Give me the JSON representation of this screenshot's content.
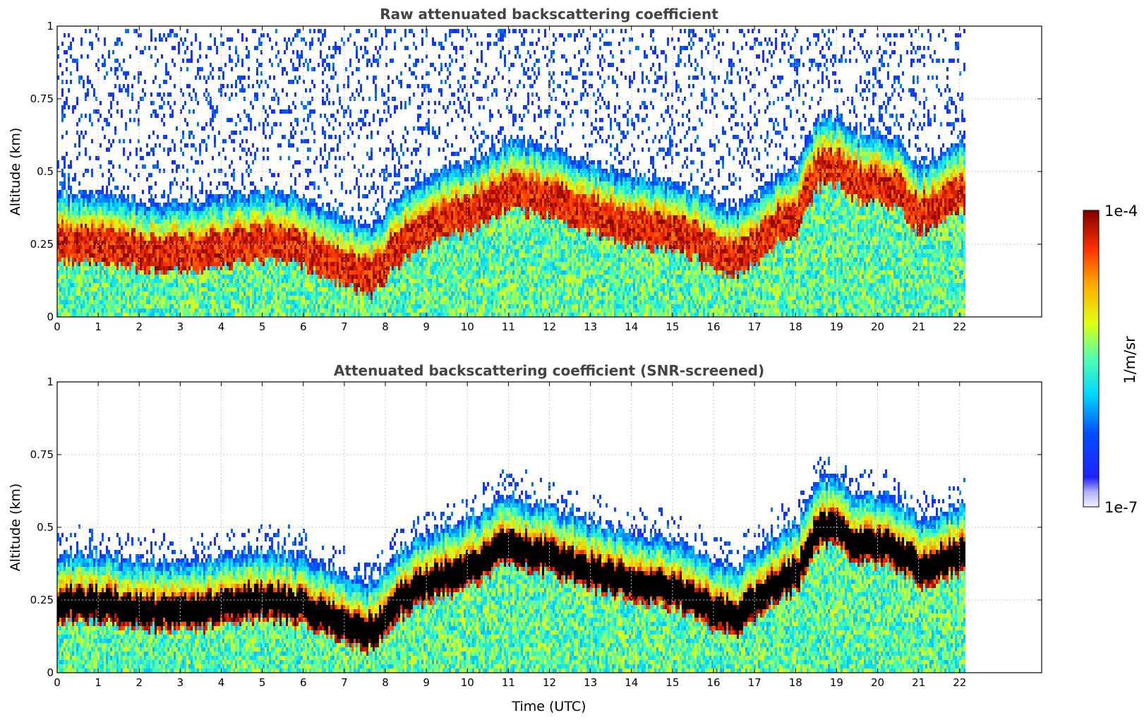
{
  "chart_data": [
    {
      "type": "heatmap",
      "title": "Raw attenuated backscattering coefficient",
      "xlabel": "",
      "ylabel": "Altitude (km)",
      "xlim": [
        0,
        24
      ],
      "ylim": [
        0,
        1
      ],
      "xticks": [
        "0",
        "1",
        "2",
        "3",
        "4",
        "5",
        "6",
        "7",
        "8",
        "9",
        "10",
        "11",
        "12",
        "13",
        "14",
        "15",
        "16",
        "17",
        "18",
        "19",
        "20",
        "21",
        "22"
      ],
      "yticks": [
        "0",
        "0.25",
        "0.5",
        "0.75",
        "1"
      ],
      "grid": true,
      "screened": false,
      "data_end_hour": 22.1,
      "boundary_layer_top_km": [
        [
          0,
          0.32
        ],
        [
          1,
          0.31
        ],
        [
          2,
          0.29
        ],
        [
          3,
          0.28
        ],
        [
          4,
          0.3
        ],
        [
          5,
          0.32
        ],
        [
          6,
          0.3
        ],
        [
          7,
          0.23
        ],
        [
          7.7,
          0.2
        ],
        [
          8.2,
          0.3
        ],
        [
          9,
          0.38
        ],
        [
          10,
          0.42
        ],
        [
          11,
          0.5
        ],
        [
          12,
          0.47
        ],
        [
          13,
          0.42
        ],
        [
          14,
          0.38
        ],
        [
          15,
          0.36
        ],
        [
          15.6,
          0.32
        ],
        [
          16,
          0.29
        ],
        [
          16.5,
          0.26
        ],
        [
          17,
          0.3
        ],
        [
          17.5,
          0.38
        ],
        [
          18,
          0.4
        ],
        [
          18.5,
          0.57
        ],
        [
          19,
          0.58
        ],
        [
          19.5,
          0.52
        ],
        [
          20,
          0.52
        ],
        [
          20.5,
          0.5
        ],
        [
          21,
          0.42
        ],
        [
          21.5,
          0.45
        ],
        [
          22.1,
          0.5
        ]
      ]
    },
    {
      "type": "heatmap",
      "title": "Attenuated backscattering coefficient (SNR-screened)",
      "xlabel": "Time (UTC)",
      "ylabel": "Altitude (km)",
      "xlim": [
        0,
        24
      ],
      "ylim": [
        0,
        1
      ],
      "xticks": [
        "0",
        "1",
        "2",
        "3",
        "4",
        "5",
        "6",
        "7",
        "8",
        "9",
        "10",
        "11",
        "12",
        "13",
        "14",
        "15",
        "16",
        "17",
        "18",
        "19",
        "20",
        "21",
        "22"
      ],
      "yticks": [
        "0",
        "0.25",
        "0.5",
        "0.75",
        "1"
      ],
      "grid": true,
      "screened": true,
      "data_end_hour": 22.1,
      "boundary_layer_top_km": [
        [
          0,
          0.3
        ],
        [
          1,
          0.3
        ],
        [
          2,
          0.28
        ],
        [
          3,
          0.27
        ],
        [
          4,
          0.29
        ],
        [
          5,
          0.31
        ],
        [
          6,
          0.29
        ],
        [
          7,
          0.22
        ],
        [
          7.7,
          0.2
        ],
        [
          8.2,
          0.3
        ],
        [
          9,
          0.37
        ],
        [
          10,
          0.42
        ],
        [
          11,
          0.5
        ],
        [
          12,
          0.46
        ],
        [
          13,
          0.41
        ],
        [
          14,
          0.37
        ],
        [
          15,
          0.35
        ],
        [
          15.6,
          0.31
        ],
        [
          16,
          0.28
        ],
        [
          16.5,
          0.25
        ],
        [
          17,
          0.3
        ],
        [
          17.5,
          0.37
        ],
        [
          18,
          0.4
        ],
        [
          18.5,
          0.55
        ],
        [
          19,
          0.57
        ],
        [
          19.5,
          0.5
        ],
        [
          20,
          0.5
        ],
        [
          20.5,
          0.48
        ],
        [
          21,
          0.42
        ],
        [
          21.5,
          0.45
        ],
        [
          22.1,
          0.48
        ]
      ]
    }
  ],
  "colorbar": {
    "max_label": "1e-4",
    "min_label": "1e-7",
    "label": "1/m/sr",
    "colormap": "jet"
  },
  "colors": {
    "title_gray": "#444444",
    "grid": "#c8c8c8",
    "screened_core": "#000000"
  }
}
